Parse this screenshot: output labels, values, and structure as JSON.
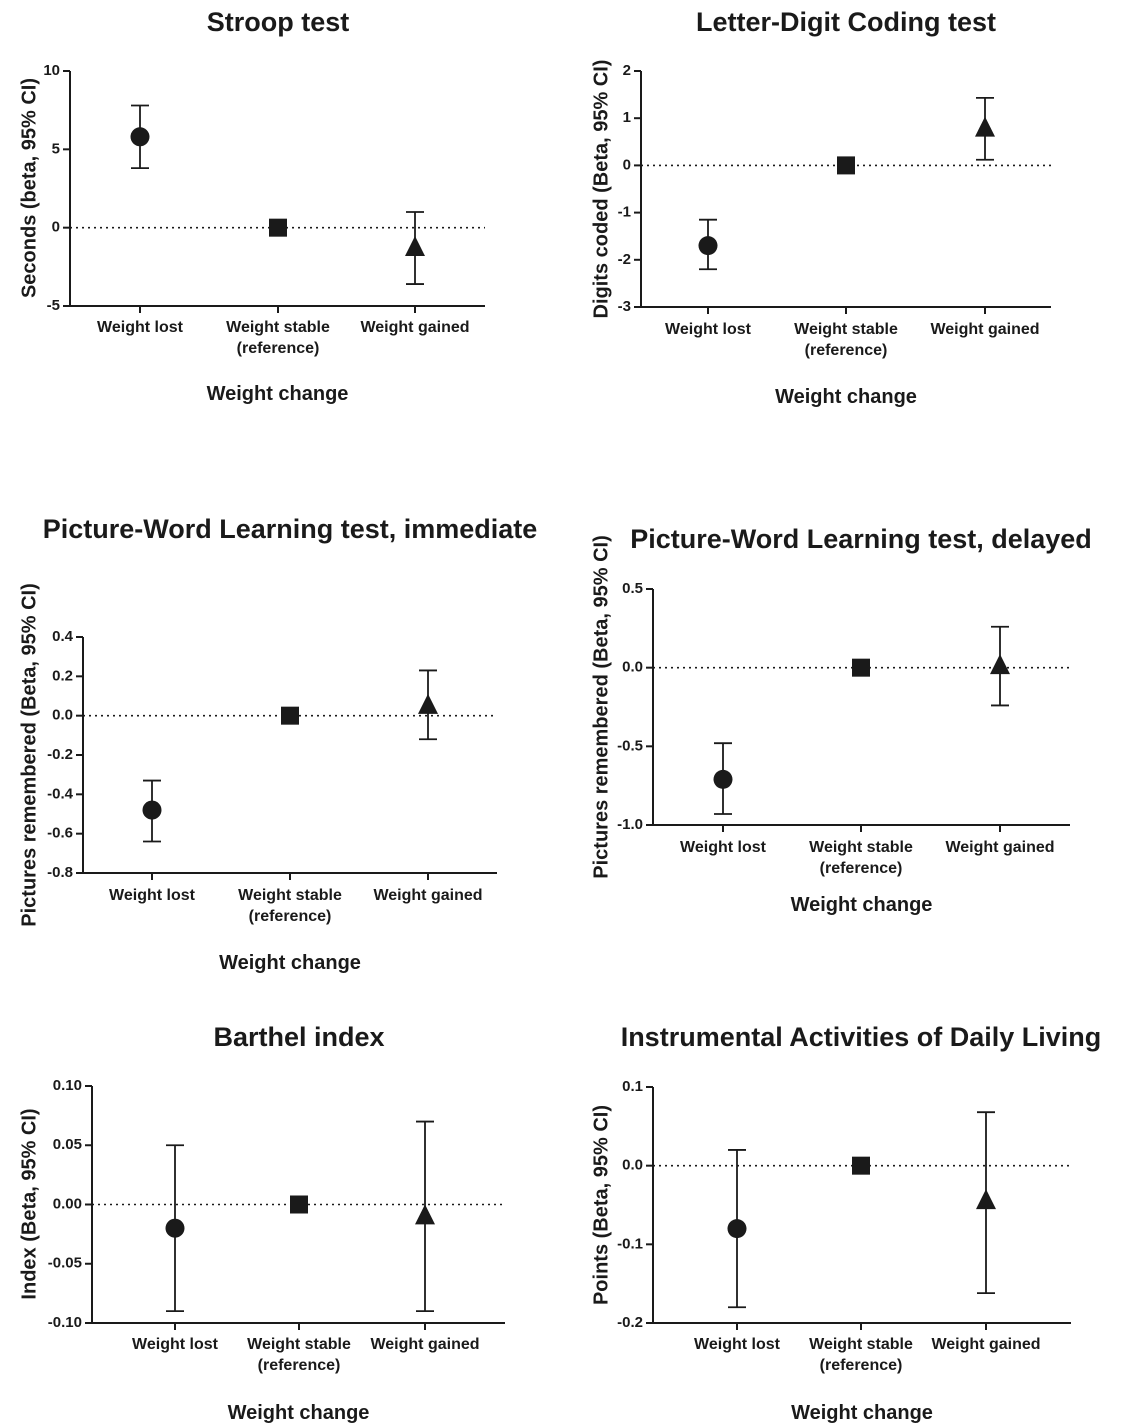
{
  "figure": {
    "x_axis_label": "Weight change",
    "categories": [
      {
        "label": "Weight lost",
        "label2": ""
      },
      {
        "label": "Weight stable",
        "label2": "(reference)"
      },
      {
        "label": "Weight gained",
        "label2": ""
      }
    ]
  },
  "chart_data": [
    {
      "type": "scatter",
      "title": "Stroop test",
      "ylabel": "Seconds (beta, 95% CI)",
      "xlabel": "Weight change",
      "ylim": [
        -5,
        10
      ],
      "yticks": [
        -5,
        0,
        5,
        10
      ],
      "ytick_labels": [
        "-5",
        "0",
        "5",
        "10"
      ],
      "series": [
        {
          "category": "Weight lost",
          "marker": "circle",
          "estimate": 5.8,
          "ci_low": 3.8,
          "ci_high": 7.8
        },
        {
          "category": "Weight stable (reference)",
          "marker": "square",
          "estimate": 0,
          "ci_low": null,
          "ci_high": null
        },
        {
          "category": "Weight gained",
          "marker": "triangle",
          "estimate": -1.3,
          "ci_low": -3.6,
          "ci_high": 1.0
        }
      ]
    },
    {
      "type": "scatter",
      "title": "Letter-Digit Coding test",
      "ylabel": "Digits coded (Beta, 95% CI)",
      "xlabel": "Weight change",
      "ylim": [
        -3,
        2
      ],
      "yticks": [
        -3,
        -2,
        -1,
        0,
        1,
        2
      ],
      "ytick_labels": [
        "-3",
        "-2",
        "-1",
        "0",
        "1",
        "2"
      ],
      "series": [
        {
          "category": "Weight lost",
          "marker": "circle",
          "estimate": -1.7,
          "ci_low": -2.2,
          "ci_high": -1.15
        },
        {
          "category": "Weight stable (reference)",
          "marker": "square",
          "estimate": 0,
          "ci_low": null,
          "ci_high": null
        },
        {
          "category": "Weight gained",
          "marker": "triangle",
          "estimate": 0.78,
          "ci_low": 0.12,
          "ci_high": 1.43
        }
      ]
    },
    {
      "type": "scatter",
      "title": "Picture-Word Learning test, immediate",
      "ylabel": "Pictures remembered (Beta, 95% CI)",
      "xlabel": "Weight change",
      "ylim": [
        -0.8,
        0.4
      ],
      "yticks": [
        -0.8,
        -0.6,
        -0.4,
        -0.2,
        0.0,
        0.2,
        0.4
      ],
      "ytick_labels": [
        "-0.8",
        "-0.6",
        "-0.4",
        "-0.2",
        "0.0",
        "0.2",
        "0.4"
      ],
      "series": [
        {
          "category": "Weight lost",
          "marker": "circle",
          "estimate": -0.48,
          "ci_low": -0.64,
          "ci_high": -0.33
        },
        {
          "category": "Weight stable (reference)",
          "marker": "square",
          "estimate": 0,
          "ci_low": null,
          "ci_high": null
        },
        {
          "category": "Weight gained",
          "marker": "triangle",
          "estimate": 0.05,
          "ci_low": -0.12,
          "ci_high": 0.23
        }
      ]
    },
    {
      "type": "scatter",
      "title": "Picture-Word Learning test, delayed",
      "ylabel": "Pictures remembered (Beta, 95% CI)",
      "xlabel": "Weight change",
      "ylim": [
        -1.0,
        0.5
      ],
      "yticks": [
        -1.0,
        -0.5,
        0.0,
        0.5
      ],
      "ytick_labels": [
        "-1.0",
        "-0.5",
        "0.0",
        "0.5"
      ],
      "series": [
        {
          "category": "Weight lost",
          "marker": "circle",
          "estimate": -0.71,
          "ci_low": -0.93,
          "ci_high": -0.48
        },
        {
          "category": "Weight stable (reference)",
          "marker": "square",
          "estimate": 0,
          "ci_low": null,
          "ci_high": null
        },
        {
          "category": "Weight gained",
          "marker": "triangle",
          "estimate": 0.01,
          "ci_low": -0.24,
          "ci_high": 0.26
        }
      ]
    },
    {
      "type": "scatter",
      "title": "Barthel index",
      "ylabel": "Index (Beta, 95% CI)",
      "xlabel": "Weight change",
      "ylim": [
        -0.1,
        0.1
      ],
      "yticks": [
        -0.1,
        -0.05,
        0.0,
        0.05,
        0.1
      ],
      "ytick_labels": [
        "-0.10",
        "-0.05",
        "0.00",
        "0.05",
        "0.10"
      ],
      "series": [
        {
          "category": "Weight lost",
          "marker": "circle",
          "estimate": -0.02,
          "ci_low": -0.09,
          "ci_high": 0.05
        },
        {
          "category": "Weight stable (reference)",
          "marker": "square",
          "estimate": 0,
          "ci_low": null,
          "ci_high": null
        },
        {
          "category": "Weight gained",
          "marker": "triangle",
          "estimate": -0.01,
          "ci_low": -0.09,
          "ci_high": 0.07
        }
      ]
    },
    {
      "type": "scatter",
      "title": "Instrumental  Activities of  Daily Living",
      "ylabel": "Points (Beta, 95% CI)",
      "xlabel": "Weight change",
      "ylim": [
        -0.2,
        0.1
      ],
      "yticks": [
        -0.2,
        -0.1,
        0.0,
        0.1
      ],
      "ytick_labels": [
        "-0.2",
        "-0.1",
        "0.0",
        "0.1"
      ],
      "series": [
        {
          "category": "Weight lost",
          "marker": "circle",
          "estimate": -0.08,
          "ci_low": -0.18,
          "ci_high": 0.02
        },
        {
          "category": "Weight stable (reference)",
          "marker": "square",
          "estimate": 0,
          "ci_low": null,
          "ci_high": null
        },
        {
          "category": "Weight gained",
          "marker": "triangle",
          "estimate": -0.045,
          "ci_low": -0.162,
          "ci_high": 0.068
        }
      ]
    }
  ]
}
